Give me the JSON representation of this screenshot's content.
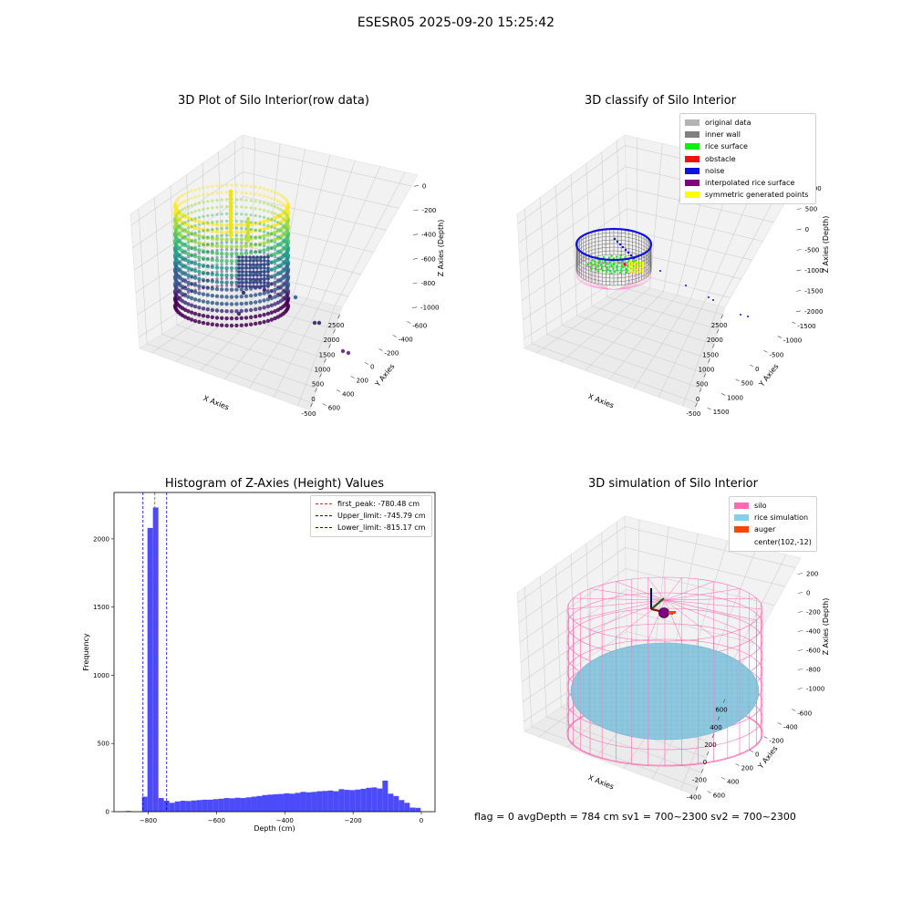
{
  "suptitle": "ESESR05 2025-09-20 15:25:42",
  "panel1": {
    "title": "3D Plot of Silo Interior(row data)",
    "xlabel": "X Axies",
    "ylabel": "Y Axies",
    "zlabel": "Z Axies (Depth)",
    "xticks": [
      "-500",
      "0",
      "500",
      "1000",
      "1500",
      "2000",
      "2500"
    ],
    "yticks": [
      "-600",
      "-400",
      "-200",
      "0",
      "200",
      "400",
      "600"
    ],
    "zticks": [
      "0",
      "-200",
      "-400",
      "-600",
      "-800",
      "-1000"
    ]
  },
  "panel2": {
    "title": "3D classify of Silo Interior",
    "xlabel": "X Axies",
    "ylabel": "Y Axies",
    "zlabel": "Z Axies (Depth)",
    "xticks": [
      "-500",
      "0",
      "500",
      "1000",
      "1500",
      "2000",
      "2500"
    ],
    "yticks": [
      "-1500",
      "-1000",
      "-500",
      "0",
      "500",
      "1000",
      "1500"
    ],
    "zticks": [
      "1000",
      "500",
      "0",
      "-500",
      "-1000",
      "-1500",
      "-2000"
    ],
    "legend": [
      {
        "label": "original data",
        "color": "#b3b3b3"
      },
      {
        "label": "inner wall",
        "color": "#808080"
      },
      {
        "label": "rice surface",
        "color": "#11ee11"
      },
      {
        "label": "obstacle",
        "color": "#ee1111"
      },
      {
        "label": "noise",
        "color": "#1111dd"
      },
      {
        "label": "interpolated rice surface",
        "color": "#800080"
      },
      {
        "label": "symmetric generated points",
        "color": "#ffff00"
      }
    ]
  },
  "panel3": {
    "title": "Histogram of Z-Axies (Height) Values",
    "xlabel": "Depth (cm)",
    "ylabel": "Frequency",
    "legend": [
      {
        "label": "first_peak: -780.48 cm",
        "color": "#d62728"
      },
      {
        "label": "Upper_limit: -745.79 cm",
        "color": "#0000cc"
      },
      {
        "label": "Lower_limit: -815.17 cm",
        "color": "#0000cc"
      }
    ]
  },
  "panel4": {
    "title": "3D simulation of Silo Interior",
    "xlabel": "X Axies",
    "ylabel": "Y Axies",
    "zlabel": "Z Axies (Depth)",
    "xticks": [
      "-400",
      "-200",
      "0",
      "200",
      "400",
      "600"
    ],
    "yticks": [
      "-600",
      "-400",
      "-200",
      "0",
      "200",
      "400",
      "600"
    ],
    "zticks": [
      "200",
      "0",
      "-200",
      "-400",
      "-600",
      "-800",
      "-1000"
    ],
    "legend": [
      {
        "label": "silo",
        "color": "#ff69b4"
      },
      {
        "label": "rice simulation",
        "color": "#87ceeb"
      },
      {
        "label": "auger",
        "color": "#ff4500"
      },
      {
        "label": "center(102,-12)",
        "color": ""
      }
    ]
  },
  "status": "flag = 0     avgDepth = 784 cm  sv1 = 700~2300  sv2 = 700~2300",
  "chart_data": [
    {
      "type": "scatter",
      "title": "3D Plot of Silo Interior(row data)",
      "xlabel": "X Axies",
      "ylabel": "Y Axies",
      "zlabel": "Z Axies (Depth)",
      "xlim": [
        -600,
        2700
      ],
      "ylim": [
        -650,
        650
      ],
      "zlim": [
        -1050,
        50
      ],
      "colormap": "viridis",
      "grid": true
    },
    {
      "type": "scatter",
      "title": "3D classify of Silo Interior",
      "xlabel": "X Axies",
      "ylabel": "Y Axies",
      "zlabel": "Z Axies (Depth)",
      "xlim": [
        -600,
        2700
      ],
      "ylim": [
        -1600,
        1600
      ],
      "zlim": [
        -2000,
        1000
      ],
      "series": [
        {
          "name": "original data"
        },
        {
          "name": "inner wall"
        },
        {
          "name": "rice surface"
        },
        {
          "name": "obstacle"
        },
        {
          "name": "noise"
        },
        {
          "name": "interpolated rice surface"
        },
        {
          "name": "symmetric generated points"
        }
      ],
      "legend": "top-right",
      "grid": true
    },
    {
      "type": "bar",
      "title": "Histogram of Z-Axies (Height) Values",
      "xlabel": "Depth (cm)",
      "ylabel": "Frequency",
      "xlim": [
        -900,
        40
      ],
      "ylim": [
        0,
        2340
      ],
      "xticks": [
        -800,
        -600,
        -400,
        -200,
        0
      ],
      "yticks": [
        0,
        500,
        1000,
        1500,
        2000
      ],
      "bin_width": 16,
      "bins": [
        [
          -866,
          5
        ],
        [
          -850,
          0
        ],
        [
          -834,
          0
        ],
        [
          -818,
          110
        ],
        [
          -802,
          2080
        ],
        [
          -786,
          2230
        ],
        [
          -770,
          100
        ],
        [
          -754,
          80
        ],
        [
          -738,
          65
        ],
        [
          -722,
          75
        ],
        [
          -706,
          80
        ],
        [
          -690,
          78
        ],
        [
          -674,
          82
        ],
        [
          -658,
          85
        ],
        [
          -642,
          88
        ],
        [
          -626,
          88
        ],
        [
          -610,
          92
        ],
        [
          -594,
          95
        ],
        [
          -578,
          100
        ],
        [
          -562,
          98
        ],
        [
          -546,
          102
        ],
        [
          -530,
          100
        ],
        [
          -514,
          105
        ],
        [
          -498,
          110
        ],
        [
          -482,
          115
        ],
        [
          -466,
          122
        ],
        [
          -450,
          125
        ],
        [
          -434,
          128
        ],
        [
          -418,
          130
        ],
        [
          -402,
          135
        ],
        [
          -386,
          132
        ],
        [
          -370,
          138
        ],
        [
          -354,
          145
        ],
        [
          -338,
          142
        ],
        [
          -322,
          145
        ],
        [
          -306,
          150
        ],
        [
          -290,
          152
        ],
        [
          -274,
          155
        ],
        [
          -258,
          150
        ],
        [
          -242,
          165
        ],
        [
          -226,
          160
        ],
        [
          -210,
          158
        ],
        [
          -194,
          162
        ],
        [
          -178,
          168
        ],
        [
          -162,
          175
        ],
        [
          -146,
          178
        ],
        [
          -130,
          170
        ],
        [
          -114,
          228
        ],
        [
          -98,
          132
        ],
        [
          -82,
          115
        ],
        [
          -66,
          85
        ],
        [
          -50,
          65
        ],
        [
          -34,
          30
        ],
        [
          -18,
          28
        ]
      ],
      "vlines": [
        {
          "name": "first_peak",
          "value": -780.48,
          "color": "#d62728"
        },
        {
          "name": "Upper_limit",
          "value": -745.79,
          "color": "#0000cc"
        },
        {
          "name": "Lower_limit",
          "value": -815.17,
          "color": "#0000cc"
        }
      ],
      "bar_color": "#4b4bfa",
      "legend": "top-right"
    },
    {
      "type": "scatter",
      "title": "3D simulation of Silo Interior",
      "xlabel": "X Axies",
      "ylabel": "Y Axies",
      "zlabel": "Z Axies (Depth)",
      "xlim": [
        -500,
        700
      ],
      "ylim": [
        -700,
        700
      ],
      "zlim": [
        -1000,
        300
      ],
      "series": [
        {
          "name": "silo"
        },
        {
          "name": "rice simulation"
        },
        {
          "name": "auger"
        }
      ],
      "center": [
        102,
        -12
      ],
      "legend": "top-right",
      "grid": true
    }
  ]
}
